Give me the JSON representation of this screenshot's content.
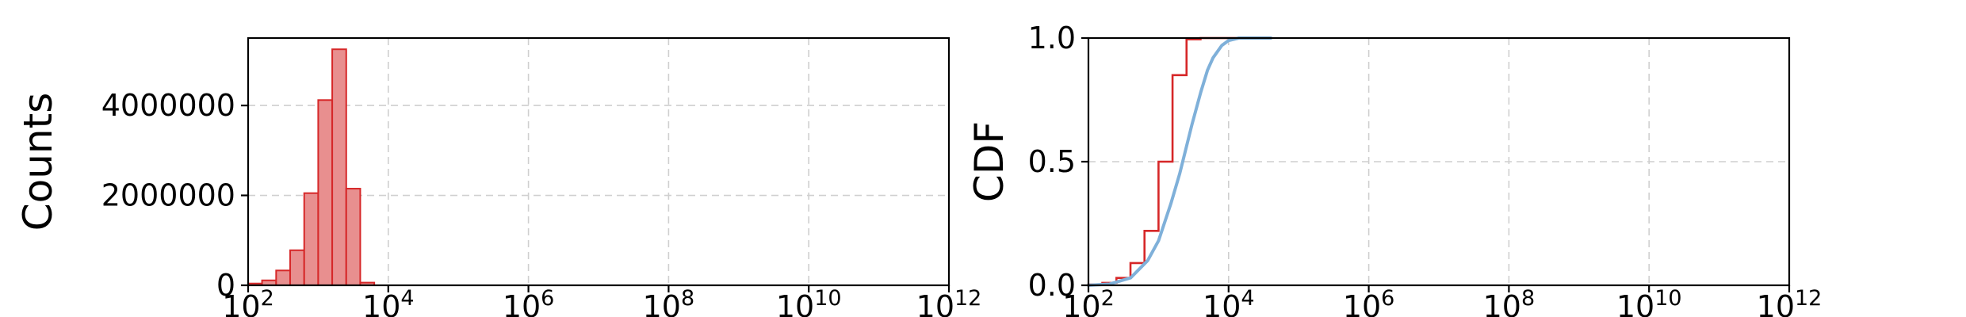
{
  "chart_data": [
    {
      "type": "bar",
      "panel": "histogram",
      "ylabel": "Counts",
      "xlabel": "",
      "x_scale": "log",
      "xlim": [
        100,
        1000000000000
      ],
      "ylim": [
        0,
        5500000
      ],
      "x_ticks": [
        100,
        10000,
        1000000,
        100000000,
        10000000000,
        1000000000000
      ],
      "x_tick_labels": [
        {
          "base": "10",
          "exp": "2"
        },
        {
          "base": "10",
          "exp": "4"
        },
        {
          "base": "10",
          "exp": "6"
        },
        {
          "base": "10",
          "exp": "8"
        },
        {
          "base": "10",
          "exp": "10"
        },
        {
          "base": "10",
          "exp": "12"
        }
      ],
      "y_ticks": [
        0,
        2000000,
        4000000
      ],
      "y_tick_labels": [
        "0",
        "2000000",
        "4000000"
      ],
      "grid": true,
      "bar_fill": "#e88f8f",
      "bar_edge": "#d62728",
      "bin_edges": [
        100,
        158,
        251,
        398,
        631,
        1000,
        1585,
        2512,
        3981,
        6310,
        10000,
        15850,
        25120
      ],
      "values": [
        40000,
        110000,
        330000,
        780000,
        2050000,
        4120000,
        5250000,
        2150000,
        60000,
        0,
        0,
        0
      ]
    },
    {
      "type": "line",
      "panel": "cdf",
      "ylabel": "CDF",
      "xlabel": "",
      "x_scale": "log",
      "xlim": [
        100,
        1000000000000
      ],
      "ylim": [
        0,
        1
      ],
      "x_ticks": [
        100,
        10000,
        1000000,
        100000000,
        10000000000,
        1000000000000
      ],
      "x_tick_labels": [
        {
          "base": "10",
          "exp": "2"
        },
        {
          "base": "10",
          "exp": "4"
        },
        {
          "base": "10",
          "exp": "6"
        },
        {
          "base": "10",
          "exp": "8"
        },
        {
          "base": "10",
          "exp": "10"
        },
        {
          "base": "10",
          "exp": "12"
        }
      ],
      "y_ticks": [
        0,
        0.5,
        1
      ],
      "y_tick_labels": [
        "0.0",
        "0.5",
        "1.0"
      ],
      "grid": true,
      "series": [
        {
          "kind": "step",
          "color": "#d62728",
          "x": [
            100,
            158,
            251,
            398,
            631,
            1000,
            1585,
            2512,
            3981,
            6310,
            10000,
            15850,
            25120,
            30000
          ],
          "y": [
            0.003,
            0.01,
            0.03,
            0.09,
            0.22,
            0.5,
            0.85,
            0.995,
            1.0,
            1.0,
            1.0,
            1.0,
            1.0,
            1.0
          ]
        },
        {
          "kind": "smooth",
          "color": "#7fb0d9",
          "x": [
            100,
            200,
            400,
            700,
            1000,
            1500,
            2000,
            3000,
            4000,
            5000,
            6000,
            8000,
            10000,
            14000,
            20000,
            40000
          ],
          "y": [
            0.0,
            0.005,
            0.03,
            0.1,
            0.18,
            0.33,
            0.45,
            0.65,
            0.78,
            0.87,
            0.92,
            0.97,
            0.99,
            1.0,
            1.0,
            1.0
          ]
        }
      ]
    }
  ]
}
